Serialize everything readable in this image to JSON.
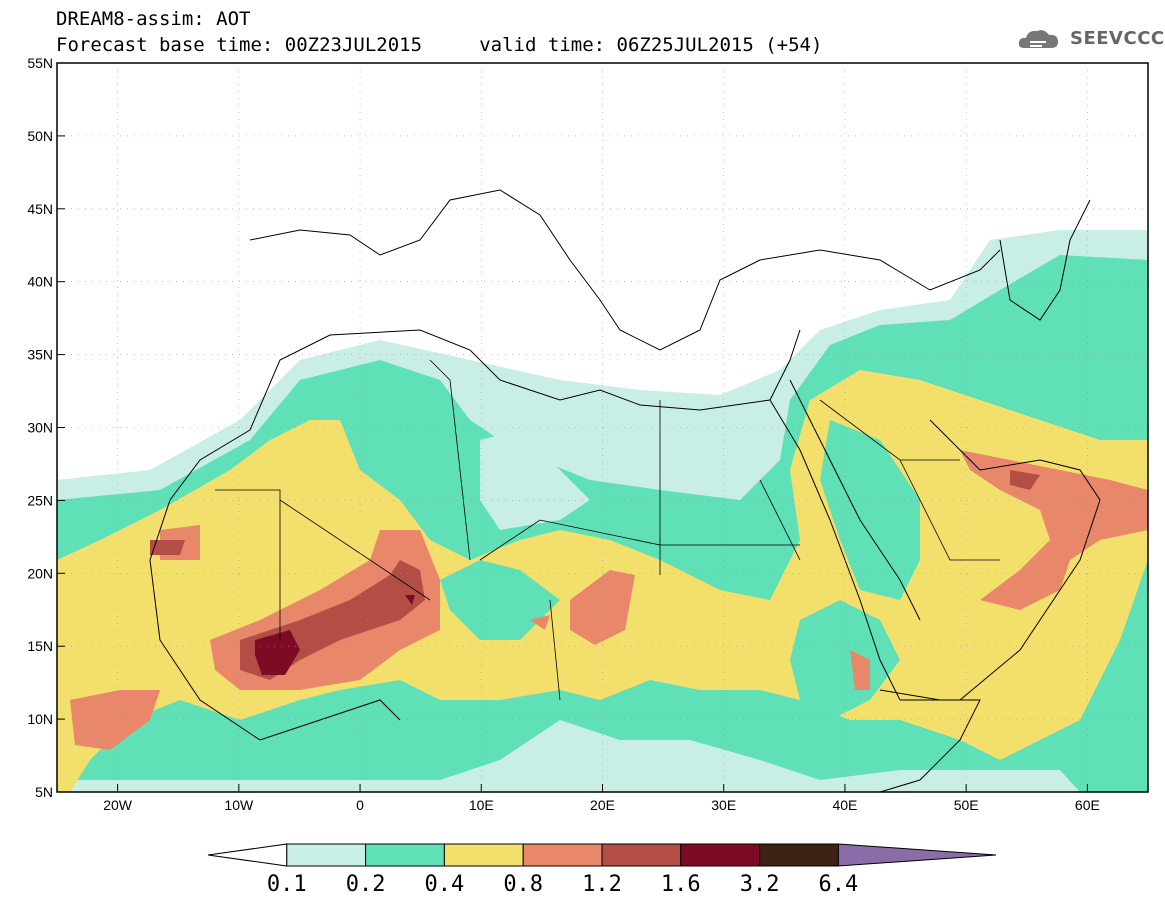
{
  "title": {
    "line1": "DREAM8-assim: AOT",
    "line2": "Forecast base time: 00Z23JUL2015     valid time: 06Z25JUL2015 (+54)"
  },
  "logo": {
    "text": "SEEVCCC",
    "icon": "cloud-icon"
  },
  "map": {
    "lat_labels": [
      "55N",
      "50N",
      "45N",
      "40N",
      "35N",
      "30N",
      "25N",
      "20N",
      "15N",
      "10N",
      "5N"
    ],
    "lon_labels": [
      "20W",
      "10W",
      "0",
      "10E",
      "20E",
      "30E",
      "40E",
      "50E",
      "60E"
    ],
    "lat_range": [
      5,
      55
    ],
    "lon_range": [
      -25,
      65
    ],
    "gridlines": true,
    "colors": {
      "aot_0.1_0.2": "#c8eee6",
      "aot_0.2_0.4": "#5fe0b7",
      "aot_0.4_0.8": "#f3e06c",
      "aot_0.8_1.2": "#e8876a",
      "aot_1.2_1.6": "#b24e45",
      "aot_1.6_3.2": "#7e0b24",
      "aot_3.2_6.4": "#3d2216",
      "aot_gt_6.4": "#8a6ca8",
      "coastline": "#000000"
    }
  },
  "colorbar": {
    "labels": [
      "0.1",
      "0.2",
      "0.4",
      "0.8",
      "1.2",
      "1.6",
      "3.2",
      "6.4"
    ],
    "colors": [
      "#ffffff",
      "#c8eee6",
      "#5fe0b7",
      "#f3e06c",
      "#e8876a",
      "#b24e45",
      "#7e0b24",
      "#3d2216",
      "#8a6ca8"
    ]
  }
}
